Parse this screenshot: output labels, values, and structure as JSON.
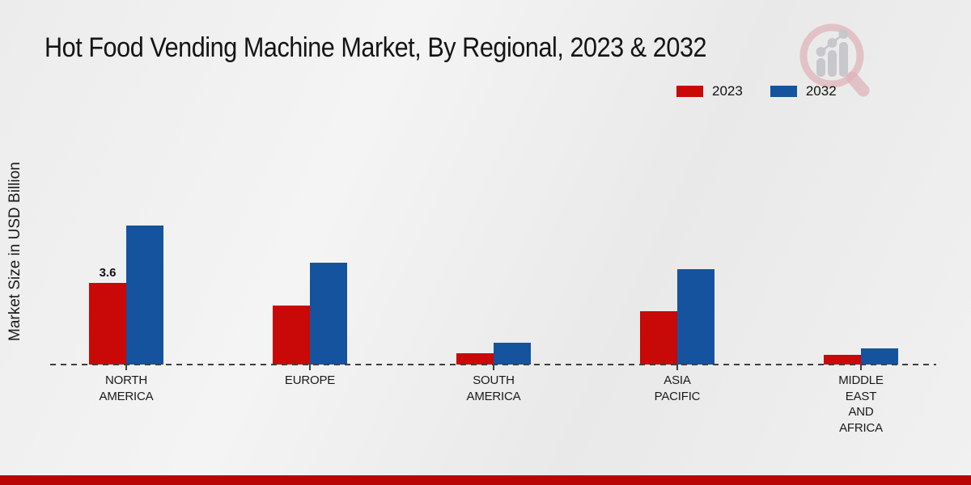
{
  "header": {
    "title": "Hot Food Vending Machine Market, By Regional, 2023 & 2032"
  },
  "y_axis": {
    "label": "Market Size in USD Billion"
  },
  "legend": {
    "items": [
      {
        "label": "2023",
        "color": "#c90808"
      },
      {
        "label": "2032",
        "color": "#15539e"
      }
    ]
  },
  "branding": {
    "logo_icon": "market-research-magnifier-chart-logo",
    "ring_color": "#e2b9bf",
    "bar_color": "#c7c7cb"
  },
  "footer": {
    "accent_color": "#b90505"
  },
  "chart_data": {
    "type": "bar",
    "title": "Hot Food Vending Machine Market, By Regional, 2023 & 2032",
    "xlabel": "",
    "ylabel": "Market Size in USD Billion",
    "categories": [
      "NORTH\nAMERICA",
      "EUROPE",
      "SOUTH\nAMERICA",
      "ASIA\nPACIFIC",
      "MIDDLE\nEAST\nAND\nAFRICA"
    ],
    "series": [
      {
        "name": "2023",
        "color": "#c90808",
        "values": [
          3.6,
          2.6,
          0.5,
          2.35,
          0.42
        ]
      },
      {
        "name": "2032",
        "color": "#15539e",
        "values": [
          6.15,
          4.5,
          0.95,
          4.2,
          0.71
        ]
      }
    ],
    "data_labels": [
      {
        "series_index": 0,
        "category_index": 0,
        "text": "3.6"
      }
    ],
    "baseline_style": "dashed",
    "grid": false,
    "legend_position": "top-right",
    "ylim": [
      0,
      7
    ]
  }
}
